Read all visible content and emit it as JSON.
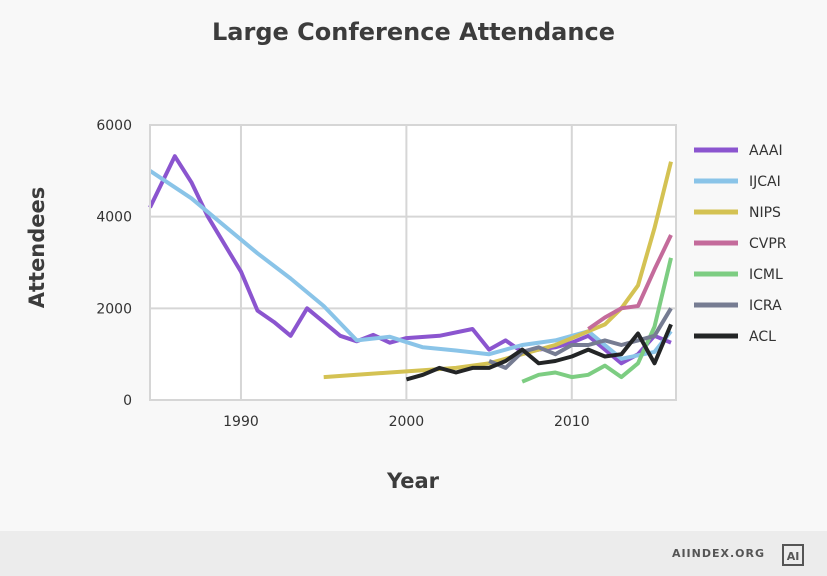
{
  "chart_data": {
    "type": "line",
    "title": "Large Conference Attendance",
    "xlabel": "Year",
    "ylabel": "Attendees",
    "xlim": [
      1984.5,
      2016.3
    ],
    "ylim": [
      0,
      6000
    ],
    "xticks": [
      1990,
      2000,
      2010
    ],
    "yticks": [
      0,
      2000,
      4000,
      6000
    ],
    "grid": true,
    "legend": "right",
    "series": [
      {
        "name": "AAAI",
        "color": "#8b55cf",
        "points": [
          [
            1984.5,
            4200
          ],
          [
            1986,
            5320
          ],
          [
            1987,
            4750
          ],
          [
            1988,
            4000
          ],
          [
            1990,
            2800
          ],
          [
            1991,
            1950
          ],
          [
            1992,
            1700
          ],
          [
            1993,
            1400
          ],
          [
            1994,
            2000
          ],
          [
            1995,
            1700
          ],
          [
            1996,
            1400
          ],
          [
            1997,
            1280
          ],
          [
            1998,
            1420
          ],
          [
            1999,
            1250
          ],
          [
            2000,
            1350
          ],
          [
            2002,
            1400
          ],
          [
            2004,
            1550
          ],
          [
            2005,
            1100
          ],
          [
            2006,
            1300
          ],
          [
            2007,
            1050
          ],
          [
            2008,
            1100
          ],
          [
            2009,
            1150
          ],
          [
            2010,
            1250
          ],
          [
            2011,
            1400
          ],
          [
            2012,
            1100
          ],
          [
            2013,
            800
          ],
          [
            2014,
            1000
          ],
          [
            2015,
            1400
          ],
          [
            2016,
            1250
          ]
        ]
      },
      {
        "name": "IJCAI",
        "color": "#8ac4e8",
        "points": [
          [
            1984.5,
            5000
          ],
          [
            1987,
            4400
          ],
          [
            1989,
            3800
          ],
          [
            1991,
            3200
          ],
          [
            1993,
            2650
          ],
          [
            1995,
            2050
          ],
          [
            1997,
            1300
          ],
          [
            1999,
            1380
          ],
          [
            2001,
            1150
          ],
          [
            2003,
            1080
          ],
          [
            2005,
            1000
          ],
          [
            2007,
            1200
          ],
          [
            2009,
            1300
          ],
          [
            2011,
            1500
          ],
          [
            2013,
            900
          ],
          [
            2015,
            1050
          ],
          [
            2016,
            1500
          ]
        ]
      },
      {
        "name": "NIPS",
        "color": "#d4c253",
        "points": [
          [
            1995,
            500
          ],
          [
            1997,
            550
          ],
          [
            1999,
            600
          ],
          [
            2001,
            650
          ],
          [
            2003,
            700
          ],
          [
            2005,
            800
          ],
          [
            2007,
            1000
          ],
          [
            2009,
            1200
          ],
          [
            2011,
            1500
          ],
          [
            2012,
            1650
          ],
          [
            2013,
            2000
          ],
          [
            2014,
            2500
          ],
          [
            2015,
            3750
          ],
          [
            2016,
            5200
          ]
        ]
      },
      {
        "name": "CVPR",
        "color": "#c46b9b",
        "points": [
          [
            2011,
            1550
          ],
          [
            2012,
            1800
          ],
          [
            2013,
            2000
          ],
          [
            2014,
            2050
          ],
          [
            2015,
            2850
          ],
          [
            2016,
            3600
          ]
        ]
      },
      {
        "name": "ICML",
        "color": "#7dcd82",
        "points": [
          [
            2007,
            400
          ],
          [
            2008,
            550
          ],
          [
            2009,
            600
          ],
          [
            2010,
            500
          ],
          [
            2011,
            550
          ],
          [
            2012,
            750
          ],
          [
            2013,
            500
          ],
          [
            2014,
            800
          ],
          [
            2015,
            1600
          ],
          [
            2016,
            3100
          ]
        ]
      },
      {
        "name": "ICRA",
        "color": "#767c92",
        "points": [
          [
            2005,
            850
          ],
          [
            2006,
            700
          ],
          [
            2007,
            1050
          ],
          [
            2008,
            1150
          ],
          [
            2009,
            1000
          ],
          [
            2010,
            1200
          ],
          [
            2011,
            1200
          ],
          [
            2012,
            1300
          ],
          [
            2013,
            1200
          ],
          [
            2014,
            1300
          ],
          [
            2015,
            1400
          ],
          [
            2016,
            2000
          ]
        ]
      },
      {
        "name": "ACL",
        "color": "#232526",
        "points": [
          [
            2000,
            450
          ],
          [
            2001,
            550
          ],
          [
            2002,
            700
          ],
          [
            2003,
            600
          ],
          [
            2004,
            700
          ],
          [
            2005,
            700
          ],
          [
            2006,
            850
          ],
          [
            2007,
            1100
          ],
          [
            2008,
            800
          ],
          [
            2009,
            850
          ],
          [
            2010,
            950
          ],
          [
            2011,
            1100
          ],
          [
            2012,
            950
          ],
          [
            2013,
            1000
          ],
          [
            2014,
            1450
          ],
          [
            2015,
            800
          ],
          [
            2016,
            1650
          ]
        ]
      }
    ]
  },
  "footer": {
    "source": "AIINDEX.ORG",
    "logo": "AI"
  }
}
